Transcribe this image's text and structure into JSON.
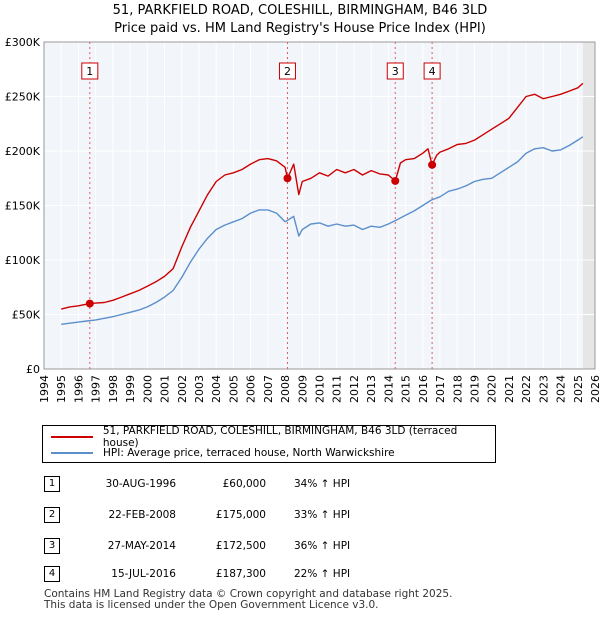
{
  "chart_data": {
    "type": "line",
    "title": "51, PARKFIELD ROAD, COLESHILL, BIRMINGHAM, B46 3LD",
    "subtitle": "Price paid vs. HM Land Registry's House Price Index (HPI)",
    "ylim": [
      0,
      300000
    ],
    "xlim": [
      1994,
      2026
    ],
    "y_ticks": [
      {
        "value": 0,
        "label": "£0"
      },
      {
        "value": 50000,
        "label": "£50K"
      },
      {
        "value": 100000,
        "label": "£100K"
      },
      {
        "value": 150000,
        "label": "£150K"
      },
      {
        "value": 200000,
        "label": "£200K"
      },
      {
        "value": 250000,
        "label": "£250K"
      },
      {
        "value": 300000,
        "label": "£300K"
      }
    ],
    "x_ticks": [
      "1994",
      "1995",
      "1996",
      "1997",
      "1998",
      "1999",
      "2000",
      "2001",
      "2002",
      "2003",
      "2004",
      "2005",
      "2006",
      "2007",
      "2008",
      "2009",
      "2010",
      "2011",
      "2012",
      "2013",
      "2014",
      "2015",
      "2016",
      "2017",
      "2018",
      "2019",
      "2020",
      "2021",
      "2022",
      "2023",
      "2024",
      "2025",
      "2026"
    ],
    "grid": true,
    "series": [
      {
        "name": "51, PARKFIELD ROAD, COLESHILL, BIRMINGHAM, B46 3LD (terraced house)",
        "color": "#cc0000",
        "x": [
          1995.0,
          1995.5,
          1996.0,
          1996.66,
          1997.0,
          1997.5,
          1998.0,
          1998.5,
          1999.0,
          1999.5,
          2000.0,
          2000.5,
          2001.0,
          2001.5,
          2002.0,
          2002.5,
          2003.0,
          2003.5,
          2004.0,
          2004.5,
          2005.0,
          2005.5,
          2006.0,
          2006.5,
          2007.0,
          2007.5,
          2008.0,
          2008.14,
          2008.5,
          2008.8,
          2009.0,
          2009.5,
          2010.0,
          2010.5,
          2011.0,
          2011.5,
          2012.0,
          2012.5,
          2013.0,
          2013.5,
          2014.0,
          2014.4,
          2014.7,
          2015.0,
          2015.5,
          2016.0,
          2016.3,
          2016.54,
          2016.8,
          2017.0,
          2017.5,
          2018.0,
          2018.5,
          2019.0,
          2019.5,
          2020.0,
          2020.5,
          2021.0,
          2021.5,
          2022.0,
          2022.5,
          2023.0,
          2023.5,
          2024.0,
          2024.5,
          2025.0,
          2025.3
        ],
        "values": [
          55000,
          57000,
          58000,
          60000,
          60500,
          61000,
          63000,
          66000,
          69000,
          72000,
          76000,
          80000,
          85000,
          92000,
          112000,
          130000,
          145000,
          160000,
          172000,
          178000,
          180000,
          183000,
          188000,
          192000,
          193000,
          191000,
          185000,
          175000,
          188000,
          160000,
          172000,
          175000,
          180000,
          177000,
          183000,
          180000,
          183000,
          178000,
          182000,
          179000,
          178000,
          172500,
          189000,
          192000,
          193000,
          198000,
          202000,
          187300,
          196000,
          199000,
          202000,
          206000,
          207000,
          210000,
          215000,
          220000,
          225000,
          230000,
          240000,
          250000,
          252000,
          248000,
          250000,
          252000,
          255000,
          258000,
          262000
        ]
      },
      {
        "name": "HPI: Average price, terraced house, North Warwickshire",
        "color": "#5b8fcc",
        "x": [
          1995.0,
          1995.5,
          1996.0,
          1996.5,
          1997.0,
          1997.5,
          1998.0,
          1998.5,
          1999.0,
          1999.5,
          2000.0,
          2000.5,
          2001.0,
          2001.5,
          2002.0,
          2002.5,
          2003.0,
          2003.5,
          2004.0,
          2004.5,
          2005.0,
          2005.5,
          2006.0,
          2006.5,
          2007.0,
          2007.5,
          2008.0,
          2008.5,
          2008.8,
          2009.0,
          2009.5,
          2010.0,
          2010.5,
          2011.0,
          2011.5,
          2012.0,
          2012.5,
          2013.0,
          2013.5,
          2014.0,
          2014.5,
          2015.0,
          2015.5,
          2016.0,
          2016.5,
          2017.0,
          2017.5,
          2018.0,
          2018.5,
          2019.0,
          2019.5,
          2020.0,
          2020.5,
          2021.0,
          2021.5,
          2022.0,
          2022.5,
          2023.0,
          2023.5,
          2024.0,
          2024.5,
          2025.0,
          2025.3
        ],
        "values": [
          41000,
          42000,
          43000,
          44000,
          45000,
          46500,
          48000,
          50000,
          52000,
          54000,
          57000,
          61000,
          66000,
          72000,
          84000,
          98000,
          110000,
          120000,
          128000,
          132000,
          135000,
          138000,
          143000,
          146000,
          146000,
          143000,
          135000,
          140000,
          122000,
          128000,
          133000,
          134000,
          131000,
          133000,
          131000,
          132000,
          128000,
          131000,
          130000,
          133000,
          137000,
          141000,
          145000,
          150000,
          155000,
          158000,
          163000,
          165000,
          168000,
          172000,
          174000,
          175000,
          180000,
          185000,
          190000,
          198000,
          202000,
          203000,
          200000,
          201000,
          205000,
          210000,
          213000
        ]
      }
    ],
    "sales": [
      {
        "num": "1",
        "x": 1996.66,
        "price": 60000
      },
      {
        "num": "2",
        "x": 2008.14,
        "price": 175000
      },
      {
        "num": "3",
        "x": 2014.4,
        "price": 172500
      },
      {
        "num": "4",
        "x": 2016.54,
        "price": 187300
      }
    ]
  },
  "legend": {
    "property_label": "51, PARKFIELD ROAD, COLESHILL, BIRMINGHAM, B46 3LD (terraced house)",
    "hpi_label": "HPI: Average price, terraced house, North Warwickshire",
    "property_color": "#cc0000",
    "hpi_color": "#5b8fcc"
  },
  "sales_table": [
    {
      "num": "1",
      "date": "30-AUG-1996",
      "price": "£60,000",
      "hpi": "34% ↑ HPI"
    },
    {
      "num": "2",
      "date": "22-FEB-2008",
      "price": "£175,000",
      "hpi": "33% ↑ HPI"
    },
    {
      "num": "3",
      "date": "27-MAY-2014",
      "price": "£172,500",
      "hpi": "36% ↑ HPI"
    },
    {
      "num": "4",
      "date": "15-JUL-2016",
      "price": "£187,300",
      "hpi": "22% ↑ HPI"
    }
  ],
  "footer": {
    "line1": "Contains HM Land Registry data © Crown copyright and database right 2025.",
    "line2": "This data is licensed under the Open Government Licence v3.0."
  }
}
